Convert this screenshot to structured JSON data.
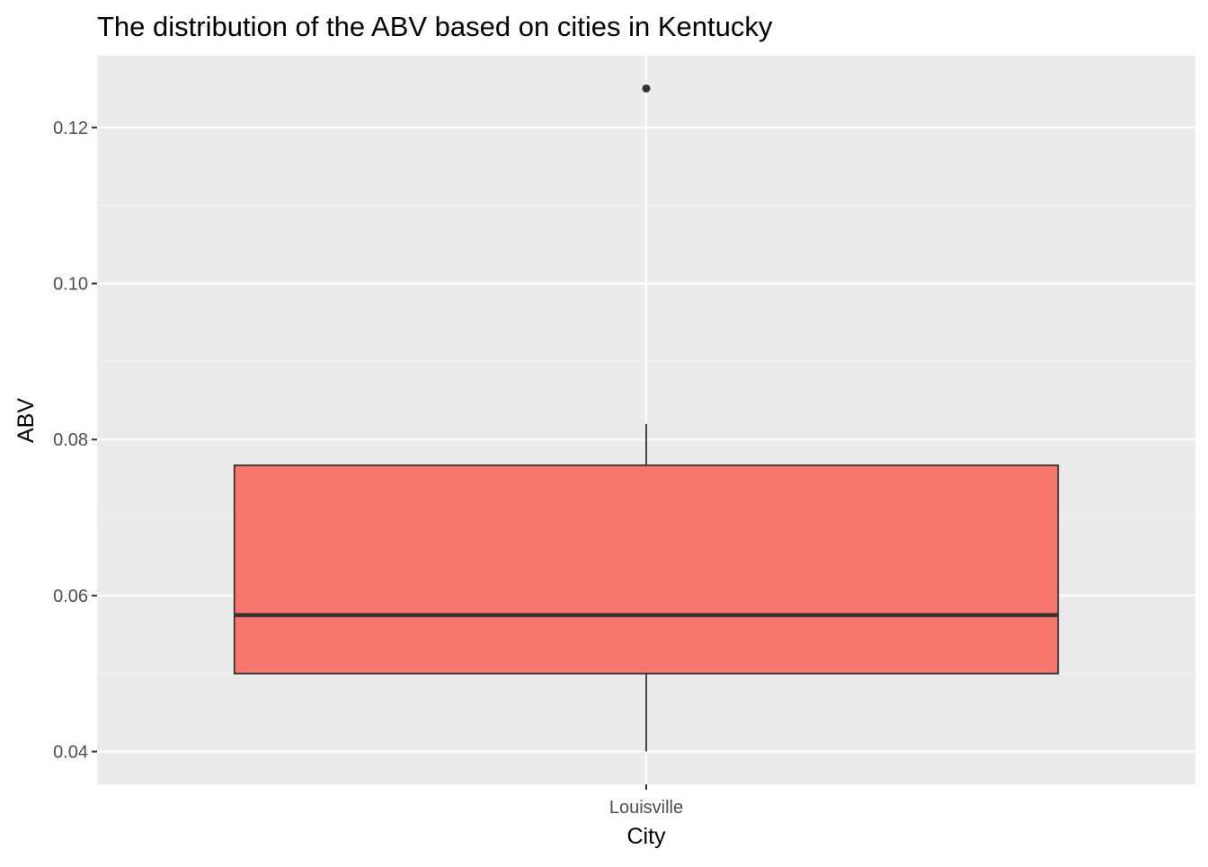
{
  "chart_data": {
    "type": "box",
    "title": "The distribution of the ABV based on cities in Kentucky",
    "xlabel": "City",
    "ylabel": "ABV",
    "categories": [
      "Louisville"
    ],
    "ylim": [
      0.0358,
      0.1292
    ],
    "yticks": [
      0.04,
      0.06,
      0.08,
      0.1,
      0.12
    ],
    "ytick_labels": [
      "0.04",
      "0.06",
      "0.08",
      "0.10",
      "0.12"
    ],
    "boxes": [
      {
        "category": "Louisville",
        "whisker_low": 0.04,
        "q1": 0.05,
        "median": 0.0575,
        "q3": 0.0767,
        "whisker_high": 0.082,
        "outliers": [
          0.125
        ]
      }
    ],
    "grid": true,
    "legend": "none"
  },
  "colors": {
    "panel_background": "#ebebeb",
    "grid_major": "#ffffff",
    "grid_minor": "#f5f5f5",
    "box_fill": "#f8766d",
    "box_line": "#333333",
    "tick_mark": "#333333"
  }
}
